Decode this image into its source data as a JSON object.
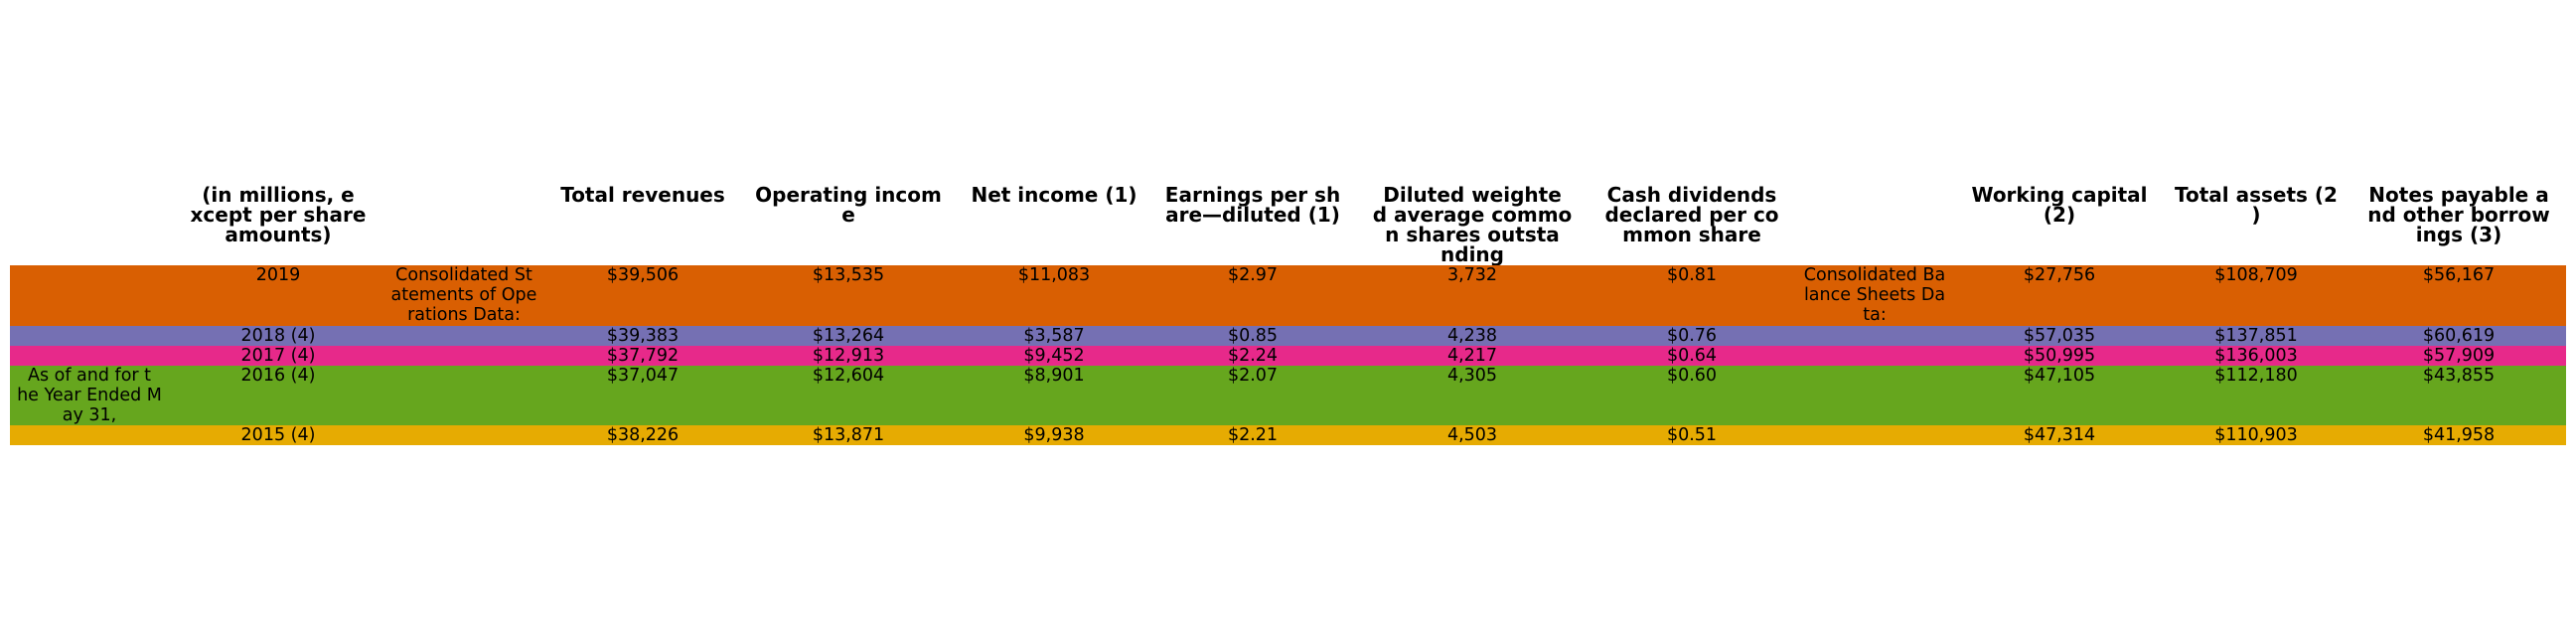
{
  "table": {
    "headers": {
      "units": "(in millions, e\nxcept per share\namounts)",
      "total_revenues": "Total revenues",
      "operating_income": "Operating incom\ne",
      "net_income": "Net income (1)",
      "eps": "Earnings per sh\nare—diluted (1)",
      "diluted_shares": "Diluted weighte\nd average commo\nn shares outsta\nnding",
      "cash_dividends": "Cash dividends\ndeclared per co\nmmon share",
      "working_capital": "Working capital\n(2)",
      "total_assets": "Total assets (2\n)",
      "notes_payable": "Notes payable a\nnd other borrow\nings (3)"
    },
    "side_label": "As of and for t\nhe Year Ended M\nay 31,",
    "ops_label": "Consolidated St\natements of Ope\nrations Data:",
    "bs_label": "Consolidated Ba\nlance Sheets Da\nta:",
    "colors": {
      "row_2019": "#d95f02",
      "row_2018": "#7570b3",
      "row_2017": "#e7298a",
      "row_2016": "#66a61e",
      "row_2015": "#e6ab02"
    },
    "rows": [
      {
        "year": "2019",
        "total_revenues": "$39,506",
        "operating_income": "$13,535",
        "net_income": "$11,083",
        "eps": "$2.97",
        "diluted_shares": "3,732",
        "cash_dividends": "$0.81",
        "working_capital": "$27,756",
        "total_assets": "$108,709",
        "notes_payable": "$56,167"
      },
      {
        "year": "2018 (4)",
        "total_revenues": "$39,383",
        "operating_income": "$13,264",
        "net_income": "$3,587",
        "eps": "$0.85",
        "diluted_shares": "4,238",
        "cash_dividends": "$0.76",
        "working_capital": "$57,035",
        "total_assets": "$137,851",
        "notes_payable": "$60,619"
      },
      {
        "year": "2017 (4)",
        "total_revenues": "$37,792",
        "operating_income": "$12,913",
        "net_income": "$9,452",
        "eps": "$2.24",
        "diluted_shares": "4,217",
        "cash_dividends": "$0.64",
        "working_capital": "$50,995",
        "total_assets": "$136,003",
        "notes_payable": "$57,909"
      },
      {
        "year": "2016 (4)",
        "total_revenues": "$37,047",
        "operating_income": "$12,604",
        "net_income": "$8,901",
        "eps": "$2.07",
        "diluted_shares": "4,305",
        "cash_dividends": "$0.60",
        "working_capital": "$47,105",
        "total_assets": "$112,180",
        "notes_payable": "$43,855"
      },
      {
        "year": "2015 (4)",
        "total_revenues": "$38,226",
        "operating_income": "$13,871",
        "net_income": "$9,938",
        "eps": "$2.21",
        "diluted_shares": "4,503",
        "cash_dividends": "$0.51",
        "working_capital": "$47,314",
        "total_assets": "$110,903",
        "notes_payable": "$41,958"
      }
    ]
  }
}
